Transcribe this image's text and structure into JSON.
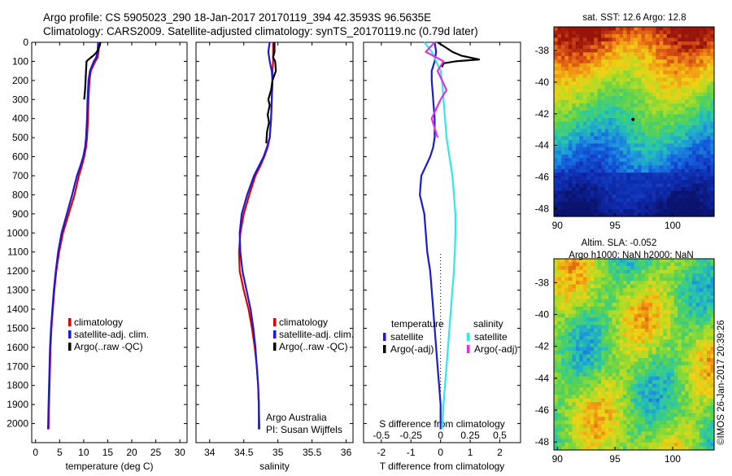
{
  "header": {
    "line1": "Argo profile: CS 5905023_290 18-Jan-2017 20170119_394 42.3593S 96.5635E",
    "line2": "Climatology: CARS2009. Satellite-adjusted climatology: synTS_20170119.nc (0.79d later)"
  },
  "colors": {
    "climatology": "#e00000",
    "satellite": "#1a1ad8",
    "argo": "#000000",
    "salinity_satellite": "#30e8e8",
    "salinity_argo": "#e030e0"
  },
  "chart_data": [
    {
      "type": "line",
      "xlabel": "temperature (deg C)",
      "ylabel": "",
      "xlim": [
        -0.8,
        31.5
      ],
      "ylim": [
        2100,
        0
      ],
      "xticks": [
        0,
        5,
        10,
        15,
        20,
        25,
        30
      ],
      "yticks": [
        0,
        100,
        200,
        300,
        400,
        500,
        600,
        700,
        800,
        900,
        1000,
        1100,
        1200,
        1300,
        1400,
        1500,
        1600,
        1700,
        1800,
        1900,
        2000
      ],
      "legend": [
        "climatology",
        "satellite-adj. clim.",
        "Argo(..raw -QC)"
      ],
      "legend_position": "lower-right",
      "series": [
        {
          "name": "climatology",
          "color": "#e00000",
          "x": [
            13.2,
            13.1,
            12.9,
            12.4,
            11.5,
            11.2,
            11.0,
            10.9,
            10.7,
            10.5,
            10.1,
            9.6,
            9.0,
            8.1,
            6.9,
            5.7,
            4.9,
            4.3,
            3.9,
            3.6,
            3.3,
            3.1,
            3.0,
            2.9,
            2.8,
            2.7
          ],
          "y": [
            0,
            50,
            80,
            100,
            150,
            200,
            300,
            400,
            500,
            550,
            600,
            650,
            700,
            800,
            900,
            1000,
            1100,
            1200,
            1300,
            1400,
            1500,
            1600,
            1700,
            1800,
            1900,
            2030
          ]
        },
        {
          "name": "satellite-adj. clim.",
          "color": "#1a1ad8",
          "x": [
            13.0,
            12.9,
            12.6,
            12.1,
            11.3,
            11.0,
            10.8,
            10.7,
            10.5,
            10.3,
            9.9,
            9.3,
            8.6,
            7.6,
            6.5,
            5.4,
            4.7,
            4.2,
            3.8,
            3.5,
            3.2,
            3.0,
            2.9,
            2.8,
            2.7,
            2.6
          ],
          "y": [
            0,
            50,
            80,
            100,
            150,
            200,
            300,
            400,
            500,
            550,
            600,
            650,
            700,
            800,
            900,
            1000,
            1100,
            1200,
            1300,
            1400,
            1500,
            1600,
            1700,
            1800,
            1900,
            2030
          ]
        },
        {
          "name": "Argo(..raw -QC)",
          "color": "#000000",
          "x": [
            13.5,
            13.3,
            13.0,
            12.6,
            12.0,
            11.0,
            10.6,
            10.5,
            10.3,
            10.1
          ],
          "y": [
            0,
            20,
            40,
            55,
            70,
            90,
            100,
            150,
            250,
            300
          ]
        }
      ]
    },
    {
      "type": "line",
      "xlabel": "salinity",
      "ylabel": "",
      "xlim": [
        33.8,
        36.1
      ],
      "ylim": [
        2100,
        0
      ],
      "xticks": [
        34,
        34.5,
        35,
        35.5,
        36
      ],
      "legend": [
        "climatology",
        "satellite-adj. clim.",
        "Argo(..raw -QC)"
      ],
      "legend_position": "lower-right",
      "annotations": [
        "Argo Australia",
        "PI: Susan Wijffels"
      ],
      "series": [
        {
          "name": "climatology",
          "color": "#e00000",
          "x": [
            34.93,
            34.93,
            34.93,
            34.92,
            34.92,
            34.91,
            34.9,
            34.88,
            34.85,
            34.8,
            34.74,
            34.67,
            34.58,
            34.5,
            34.45,
            34.43,
            34.44,
            34.5,
            34.57,
            34.62,
            34.66,
            34.69,
            34.71,
            34.72,
            34.73
          ],
          "y": [
            0,
            50,
            100,
            150,
            200,
            300,
            400,
            500,
            550,
            600,
            650,
            700,
            800,
            900,
            1000,
            1100,
            1200,
            1300,
            1400,
            1500,
            1600,
            1700,
            1800,
            1900,
            2030
          ]
        },
        {
          "name": "satellite-adj. clim.",
          "color": "#1a1ad8",
          "x": [
            34.88,
            34.86,
            34.88,
            34.91,
            34.92,
            34.91,
            34.9,
            34.88,
            34.84,
            34.79,
            34.72,
            34.65,
            34.55,
            34.47,
            34.44,
            34.45,
            34.48,
            34.54,
            34.6,
            34.64,
            34.67,
            34.69,
            34.71,
            34.72,
            34.72
          ],
          "y": [
            0,
            50,
            100,
            150,
            200,
            300,
            400,
            500,
            550,
            600,
            650,
            700,
            800,
            900,
            1000,
            1100,
            1200,
            1300,
            1400,
            1500,
            1600,
            1700,
            1800,
            1900,
            2030
          ]
        },
        {
          "name": "Argo(..raw -QC)",
          "color": "#000000",
          "x": [
            34.95,
            34.95,
            34.93,
            34.96,
            34.97,
            34.92,
            34.9,
            34.86,
            34.88,
            34.85,
            34.87,
            34.84,
            34.83
          ],
          "y": [
            0,
            50,
            80,
            100,
            150,
            200,
            250,
            300,
            330,
            380,
            420,
            470,
            530
          ]
        }
      ]
    },
    {
      "type": "line",
      "xlabel": "T difference from climatology",
      "x2label": "S difference from climatology",
      "ylabel": "",
      "xlim": [
        -2.6,
        2.7
      ],
      "ylim": [
        2100,
        0
      ],
      "xticks": [
        -2,
        -1,
        0,
        1,
        2
      ],
      "x2ticks": [
        -0.5,
        -0.25,
        0,
        0.25,
        0.5
      ],
      "legend_groups": [
        {
          "title": "temperature",
          "entries": [
            "satellite",
            "Argo(-adj)"
          ]
        },
        {
          "title": "salinity",
          "entries": [
            "satellite",
            "Argo(-adj)"
          ]
        }
      ],
      "legend_position": "lower-right",
      "series": [
        {
          "name": "temperature satellite",
          "color": "#1a1ad8",
          "x": [
            -0.2,
            -0.15,
            -0.2,
            -0.3,
            -0.3,
            -0.25,
            -0.2,
            -0.2,
            -0.25,
            -0.35,
            -0.5,
            -0.65,
            -0.7,
            -0.55,
            -0.5,
            -0.45,
            -0.35,
            -0.3,
            -0.25,
            -0.2,
            -0.15,
            -0.1,
            -0.05,
            0.0,
            0.0
          ],
          "y": [
            0,
            50,
            100,
            150,
            200,
            300,
            400,
            500,
            550,
            600,
            650,
            700,
            800,
            900,
            1000,
            1100,
            1200,
            1300,
            1400,
            1500,
            1600,
            1700,
            1800,
            1900,
            2030
          ]
        },
        {
          "name": "temperature Argo(-adj)",
          "color": "#000000",
          "x": [
            -0.1,
            0.2,
            0.4,
            0.7,
            1.3,
            0.5,
            0.1,
            0.05
          ],
          "y": [
            0,
            30,
            50,
            70,
            90,
            100,
            110,
            130
          ]
        },
        {
          "name": "salinity satellite",
          "color": "#30e8e8",
          "x": [
            -0.55,
            -0.3,
            -0.15,
            0.0,
            0.05,
            0.1,
            0.15,
            0.2,
            0.25,
            0.3,
            0.35,
            0.4,
            0.45,
            0.5,
            0.5,
            0.48,
            0.45,
            0.4,
            0.35,
            0.3,
            0.25,
            0.2,
            0.15,
            0.1,
            0.05
          ],
          "y": [
            0,
            50,
            100,
            150,
            200,
            300,
            400,
            500,
            550,
            600,
            650,
            700,
            800,
            900,
            1000,
            1100,
            1200,
            1300,
            1400,
            1500,
            1600,
            1700,
            1800,
            1900,
            2030
          ]
        },
        {
          "name": "salinity Argo(-adj)",
          "color": "#e030e0",
          "x": [
            -0.2,
            -0.5,
            0.1,
            -0.1,
            0.2,
            0.0,
            -0.15,
            -0.3,
            -0.2,
            -0.1
          ],
          "y": [
            0,
            50,
            100,
            150,
            250,
            300,
            350,
            400,
            450,
            500
          ]
        }
      ]
    }
  ],
  "maps": [
    {
      "title": "sat. SST: 12.6 Argo: 12.8",
      "kind": "sst",
      "xticks": [
        90,
        95,
        100
      ],
      "yticks": [
        -38,
        -40,
        -42,
        -44,
        -46,
        -48
      ],
      "lon": [
        89.7,
        103.6
      ],
      "lat": [
        -48.5,
        -36.5
      ],
      "argo_position": [
        96.5635,
        -42.3593
      ]
    },
    {
      "title_line1": "Altim. SLA: -0.052",
      "title_line2": "Argo h1000: NaN h2000: NaN",
      "kind": "sla",
      "xticks": [
        90,
        95,
        100
      ],
      "yticks": [
        -38,
        -40,
        -42,
        -44,
        -46,
        -48
      ],
      "lon": [
        89.7,
        103.6
      ],
      "lat": [
        -48.5,
        -36.5
      ]
    }
  ],
  "footer": {
    "stamp": "©IMOS 26-Jan-2017 20:39:26"
  }
}
